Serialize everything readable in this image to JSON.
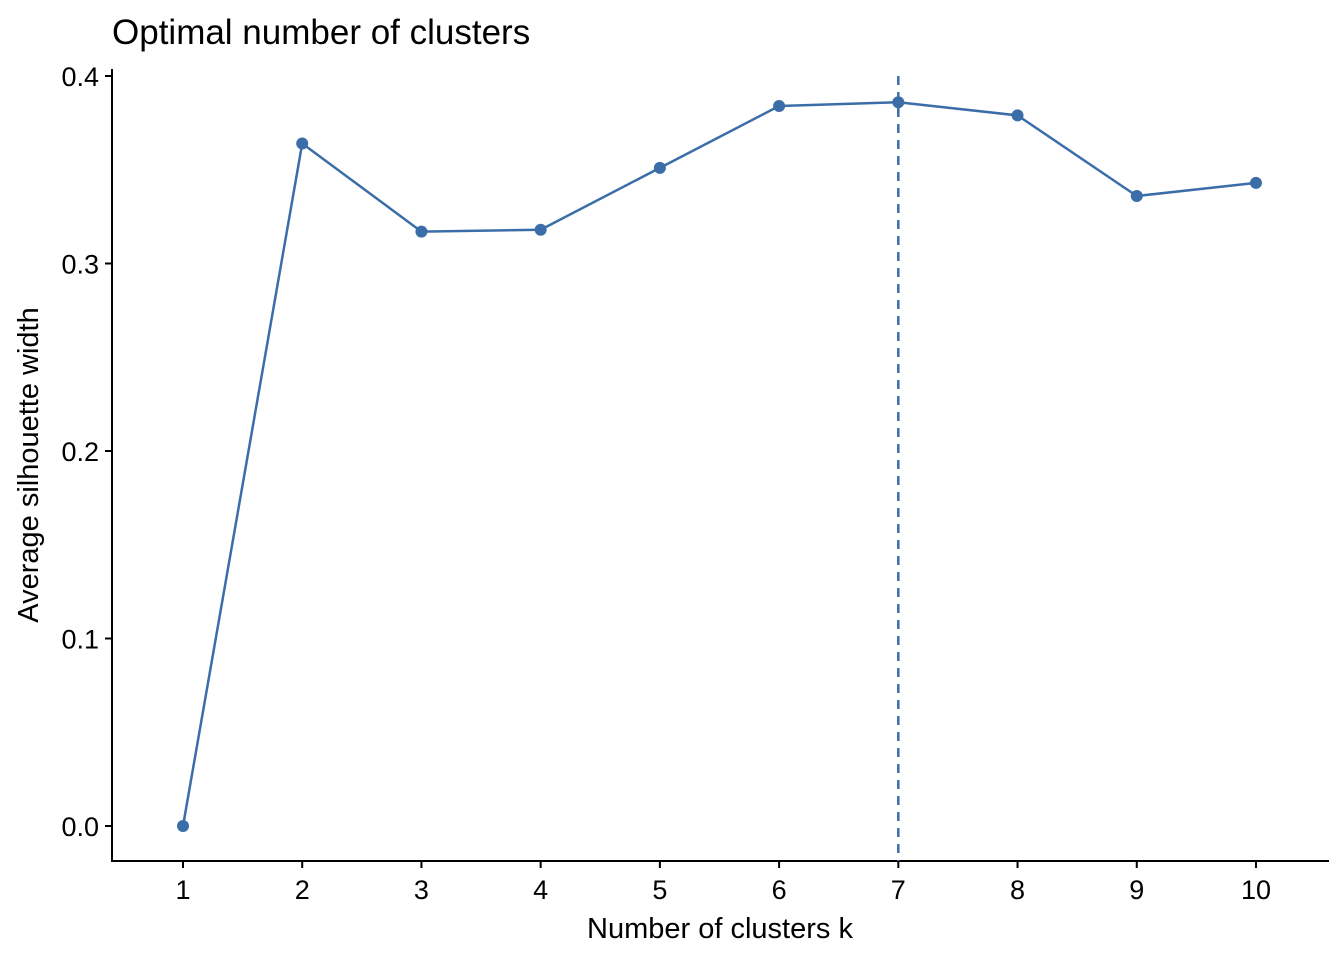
{
  "chart_data": {
    "type": "line",
    "title": "Optimal number of clusters",
    "xlabel": "Number of clusters k",
    "ylabel": "Average silhouette width",
    "categories": [
      "1",
      "2",
      "3",
      "4",
      "5",
      "6",
      "7",
      "8",
      "9",
      "10"
    ],
    "series": [
      {
        "values": [
          0.0,
          0.364,
          0.317,
          0.318,
          0.351,
          0.384,
          0.386,
          0.379,
          0.336,
          0.343
        ],
        "color": "#3b6ea8"
      }
    ],
    "y_ticks": [
      "0.0",
      "0.1",
      "0.2",
      "0.3",
      "0.4"
    ],
    "y_tick_values": [
      0.0,
      0.1,
      0.2,
      0.3,
      0.4
    ],
    "ylim": [
      -0.018,
      0.405
    ],
    "optimal_k": 7,
    "reference_line": {
      "x": 7,
      "style": "dashed",
      "color": "#3b6ea8"
    },
    "grid": false,
    "legend": "none"
  }
}
